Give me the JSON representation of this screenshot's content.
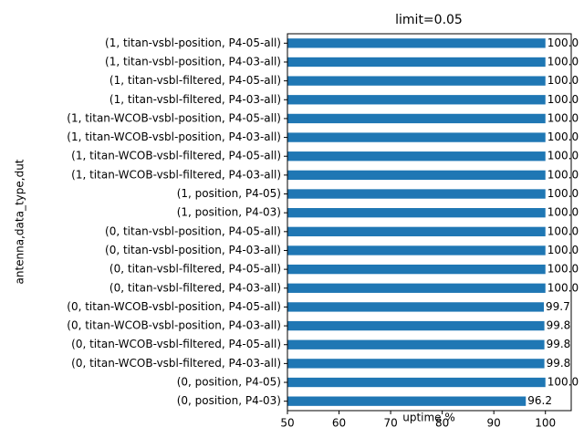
{
  "chart_data": {
    "type": "barh",
    "title": "limit=0.05",
    "xlabel": "uptime %",
    "ylabel": "antenna,data_type,dut",
    "categories": [
      "(1, titan-vsbl-position, P4-05-all)",
      "(1, titan-vsbl-position, P4-03-all)",
      "(1, titan-vsbl-filtered, P4-05-all)",
      "(1, titan-vsbl-filtered, P4-03-all)",
      "(1, titan-WCOB-vsbl-position, P4-05-all)",
      "(1, titan-WCOB-vsbl-position, P4-03-all)",
      "(1, titan-WCOB-vsbl-filtered, P4-05-all)",
      "(1, titan-WCOB-vsbl-filtered, P4-03-all)",
      "(1, position, P4-05)",
      "(1, position, P4-03)",
      "(0, titan-vsbl-position, P4-05-all)",
      "(0, titan-vsbl-position, P4-03-all)",
      "(0, titan-vsbl-filtered, P4-05-all)",
      "(0, titan-vsbl-filtered, P4-03-all)",
      "(0, titan-WCOB-vsbl-position, P4-05-all)",
      "(0, titan-WCOB-vsbl-position, P4-03-all)",
      "(0, titan-WCOB-vsbl-filtered, P4-05-all)",
      "(0, titan-WCOB-vsbl-filtered, P4-03-all)",
      "(0, position, P4-05)",
      "(0, position, P4-03)"
    ],
    "values": [
      100,
      100,
      100,
      100,
      100,
      100,
      100,
      100,
      100,
      100,
      100,
      100,
      100,
      100,
      99.7,
      99.8,
      99.8,
      99.8,
      100,
      96.2
    ],
    "value_labels": [
      "100.0",
      "100.0",
      "100.0",
      "100.0",
      "100.0",
      "100.0",
      "100.0",
      "100.0",
      "100.0",
      "100.0",
      "100.0",
      "100.0",
      "100.0",
      "100.0",
      "99.7",
      "99.8",
      "99.8",
      "99.8",
      "100.0",
      "96.2"
    ],
    "color": "#1f77b4",
    "xlim": [
      50,
      105
    ],
    "xticks": [
      50,
      60,
      70,
      80,
      90,
      100
    ],
    "grid": false
  }
}
